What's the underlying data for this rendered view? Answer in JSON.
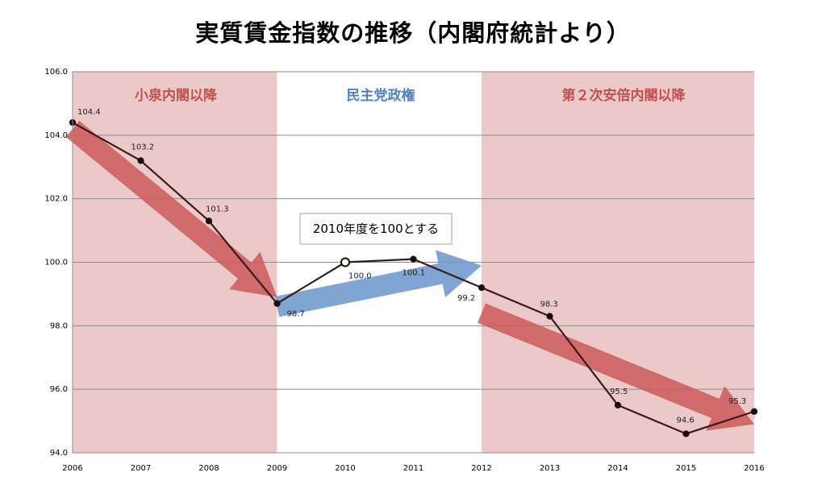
{
  "title": "実質賃金指数の推移（内閣府統計より）",
  "colors": {
    "band": "#ecc9c9",
    "red_arrow": "#cd5c5c",
    "blue_arrow": "#6f99cc",
    "red_text": "#c0504d",
    "blue_text": "#4f81bd",
    "line": "#3a1a1a"
  },
  "chart_data": {
    "type": "line",
    "title": "実質賃金指数の推移（内閣府統計より）",
    "x": [
      "2006",
      "2007",
      "2008",
      "2009",
      "2010",
      "2011",
      "2012",
      "2013",
      "2014",
      "2015",
      "2016"
    ],
    "series": [
      {
        "values": [
          104.4,
          103.2,
          101.3,
          98.7,
          100.0,
          100.1,
          99.2,
          98.3,
          95.5,
          94.6,
          95.3
        ]
      }
    ],
    "data_labels": [
      "104.4",
      "103.2",
      "101.3",
      "98.7",
      "100.0",
      "100.1",
      "99.2",
      "98.3",
      "95.5",
      "94.6",
      "95.3"
    ],
    "ylim": [
      94.0,
      106.0
    ],
    "y_ticks": [
      "94.0",
      "96.0",
      "98.0",
      "100.0",
      "102.0",
      "104.0",
      "106.0"
    ],
    "grid": true,
    "bands": [
      {
        "label": "小泉内閣以降",
        "from": "2006",
        "to": "2009",
        "shaded": true
      },
      {
        "label": "民主党政権",
        "from": "2009",
        "to": "2012",
        "shaded": false
      },
      {
        "label": "第２次安倍内閣以降",
        "from": "2012",
        "to": "2016",
        "shaded": true
      }
    ],
    "arrows": [
      {
        "from": [
          "2006",
          104.2
        ],
        "to": [
          "2009",
          98.9
        ],
        "color": "red"
      },
      {
        "from": [
          "2009",
          98.6
        ],
        "to": [
          "2012",
          99.9
        ],
        "color": "blue"
      },
      {
        "from": [
          "2012",
          98.4
        ],
        "to": [
          "2016",
          94.9
        ],
        "color": "red"
      }
    ],
    "annotation": "2010年度を100とする"
  }
}
